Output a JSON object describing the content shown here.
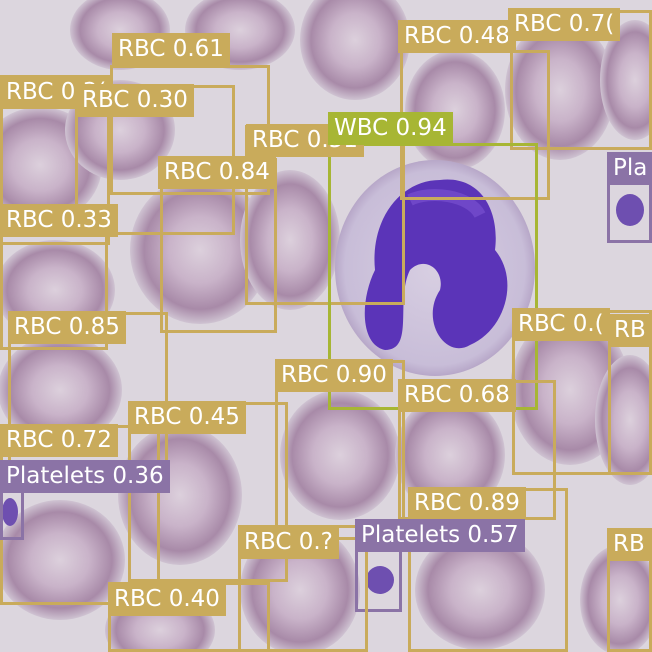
{
  "image": {
    "description": "Microscopy blood smear with object-detection bounding boxes",
    "palette": {
      "rbc": "#c9ab5b",
      "wbc": "#a7b634",
      "platelets": "#8b73a6"
    }
  },
  "detections": [
    {
      "label": "RBC 0.61"
    },
    {
      "label": "RBC 0.48"
    },
    {
      "label": "RBC 0.7("
    },
    {
      "label": "RBC 0.3("
    },
    {
      "label": "RBC 0.30"
    },
    {
      "label": "RBC 0.51"
    },
    {
      "label": "WBC 0.94"
    },
    {
      "label": "RBC 0.84"
    },
    {
      "label": "Pla"
    },
    {
      "label": "RBC 0.33"
    },
    {
      "label": "RBC 0.85"
    },
    {
      "label": "RBC 0.("
    },
    {
      "label": "RB"
    },
    {
      "label": "RBC 0.90"
    },
    {
      "label": "RBC 0.68"
    },
    {
      "label": "RBC 0.45"
    },
    {
      "label": "RBC 0.72"
    },
    {
      "label": "Platelets 0.36"
    },
    {
      "label": "RBC 0.89"
    },
    {
      "label": "Platelets 0.57"
    },
    {
      "label": "RBC 0.?"
    },
    {
      "label": "RB"
    },
    {
      "label": "RBC 0.40"
    }
  ]
}
